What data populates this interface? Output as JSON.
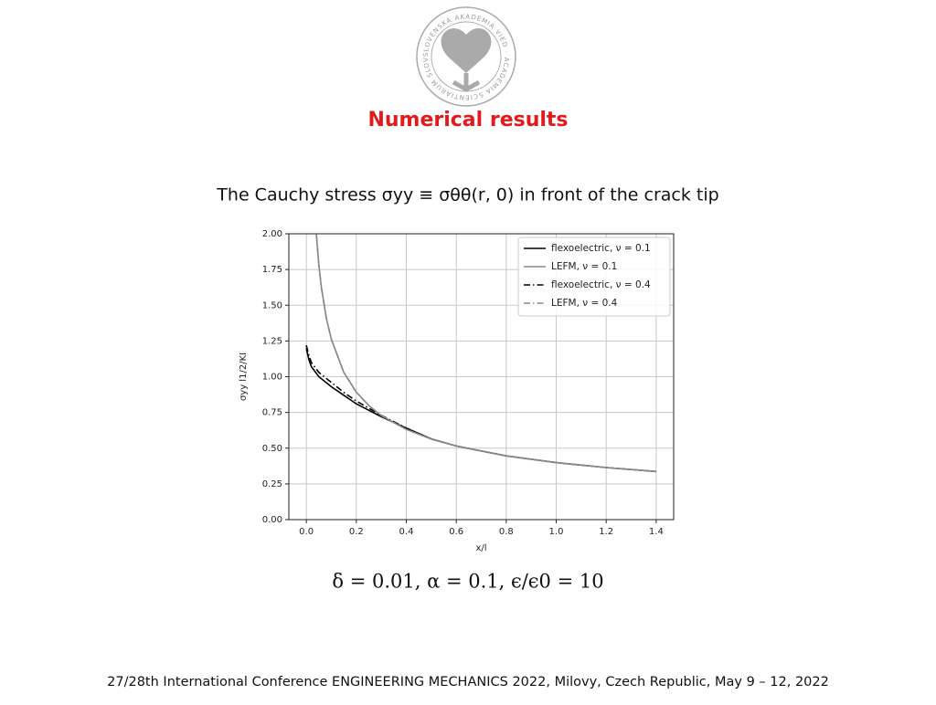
{
  "logo_text": "SLOVENSKÁ AKADÉMIA VIED · ACADEMIA SCIENTIARUM SLOVACA ·",
  "title": "Numerical results",
  "subtitle": "The Cauchy stress σyy ≡ σθθ(r, 0) in front of the crack tip",
  "caption": "δ = 0.01, α = 0.1, ϵ/ϵ0 = 10",
  "footer": "27/28th International Conference ENGINEERING MECHANICS 2022, Milovy, Czech Republic, May 9 – 12, 2022",
  "chart_data": {
    "type": "line",
    "xlabel": "x/l",
    "ylabel": "σyy l1/2/KI",
    "xlim": [
      -0.07,
      1.47
    ],
    "ylim": [
      0,
      2
    ],
    "xticks": [
      {
        "value": 0,
        "label": "0.0"
      },
      0.2,
      0.4,
      0.6,
      0.8,
      {
        "value": 1,
        "label": "1.0"
      },
      1.2,
      1.4
    ],
    "yticks": [
      {
        "value": 0,
        "label": "0.00"
      },
      {
        "value": 0.25,
        "label": "0.25"
      },
      {
        "value": 0.5,
        "label": "0.50"
      },
      {
        "value": 0.75,
        "label": "0.75"
      },
      {
        "value": 1,
        "label": "1.00"
      },
      {
        "value": 1.25,
        "label": "1.25"
      },
      {
        "value": 1.5,
        "label": "1.50"
      },
      {
        "value": 1.75,
        "label": "1.75"
      },
      {
        "value": 2,
        "label": "2.00"
      }
    ],
    "grid": true,
    "legend": "upper right",
    "series": [
      {
        "name": "flexoelectric, ν = 0.1",
        "color": "#000000",
        "dash": "solid",
        "x": [
          0,
          0.01,
          0.02,
          0.05,
          0.1,
          0.15,
          0.2,
          0.3,
          0.4,
          0.5,
          0.6,
          0.8,
          1.0,
          1.2,
          1.4
        ],
        "values": [
          1.2,
          1.12,
          1.07,
          1.0,
          0.93,
          0.87,
          0.81,
          0.72,
          0.64,
          0.565,
          0.515,
          0.446,
          0.399,
          0.364,
          0.337
        ]
      },
      {
        "name": "LEFM, ν = 0.1",
        "color": "#888888",
        "dash": "solid",
        "x": [
          0.04,
          0.05,
          0.06,
          0.08,
          0.1,
          0.15,
          0.2,
          0.25,
          0.3,
          0.4,
          0.5,
          0.6,
          0.8,
          1.0,
          1.2,
          1.4
        ],
        "values": [
          1.995,
          1.784,
          1.629,
          1.41,
          1.262,
          1.03,
          0.892,
          0.798,
          0.728,
          0.631,
          0.564,
          0.515,
          0.446,
          0.399,
          0.364,
          0.337
        ]
      },
      {
        "name": "flexoelectric, ν = 0.4",
        "color": "#000000",
        "dash": "dashdot",
        "x": [
          0,
          0.01,
          0.02,
          0.05,
          0.1,
          0.15,
          0.2,
          0.3,
          0.4,
          0.5,
          0.55
        ],
        "values": [
          1.22,
          1.15,
          1.1,
          1.03,
          0.96,
          0.89,
          0.83,
          0.73,
          0.64,
          0.565,
          0.54
        ]
      },
      {
        "name": "LEFM, ν = 0.4",
        "color": "#888888",
        "dash": "dashdot",
        "x": [
          0.04,
          0.05,
          0.06,
          0.08,
          0.1,
          0.15,
          0.2,
          0.25,
          0.3,
          0.4,
          0.5,
          0.6,
          0.8,
          1.0,
          1.2,
          1.4
        ],
        "values": [
          1.995,
          1.784,
          1.629,
          1.41,
          1.262,
          1.03,
          0.892,
          0.798,
          0.728,
          0.631,
          0.564,
          0.515,
          0.446,
          0.399,
          0.364,
          0.337
        ]
      }
    ]
  }
}
